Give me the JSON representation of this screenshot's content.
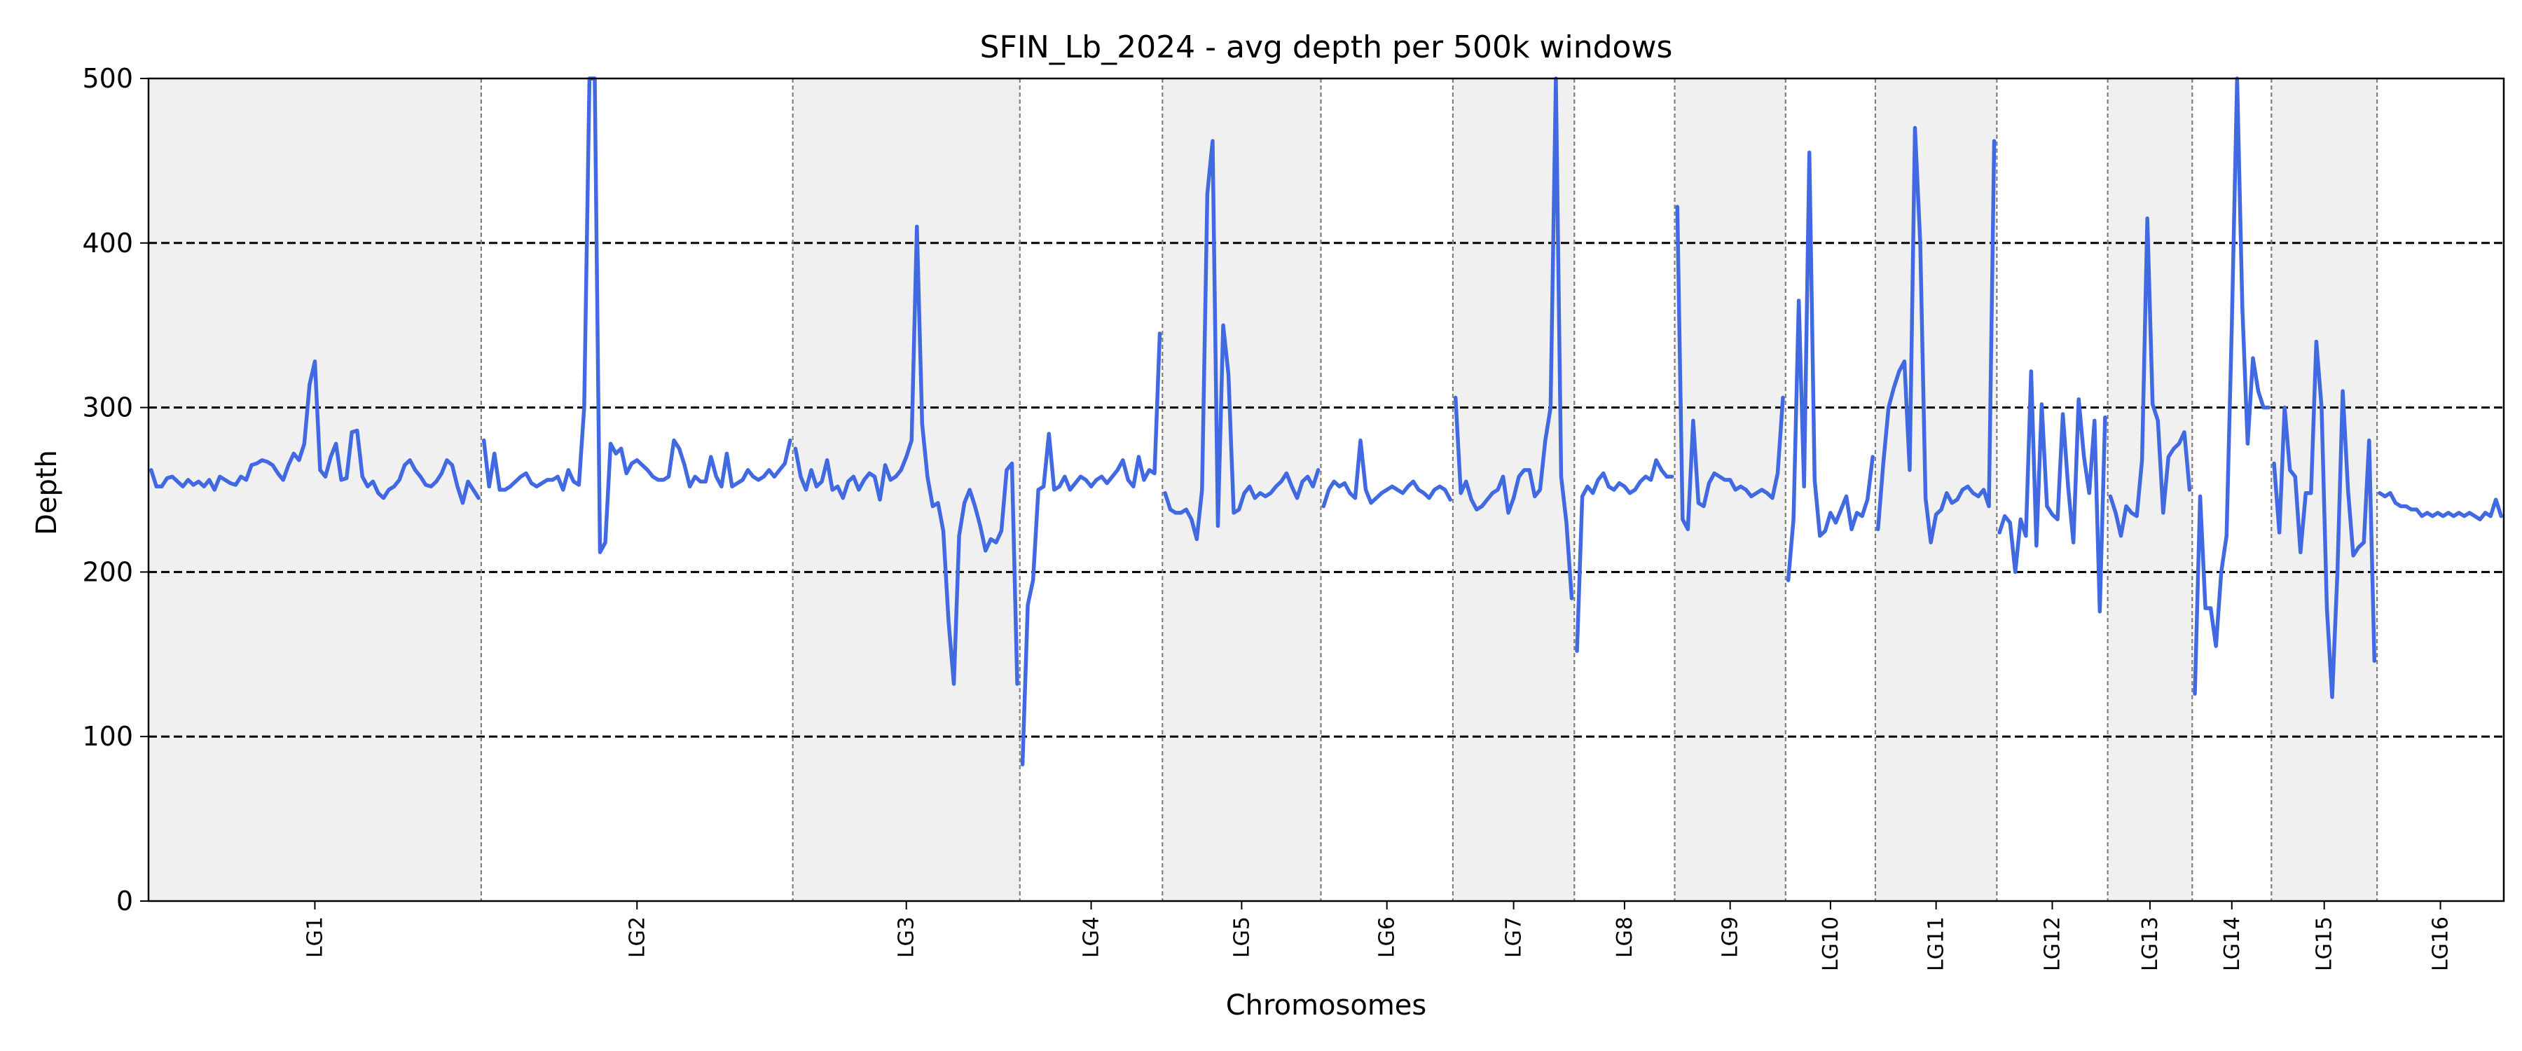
{
  "chart_data": {
    "type": "line",
    "title": "SFIN_Lb_2024 - avg depth per 500k windows",
    "xlabel": "Chromosomes",
    "ylabel": "Depth",
    "ylim": [
      0,
      500
    ],
    "yticks": [
      0,
      100,
      200,
      300,
      400,
      500
    ],
    "hlines": [
      100,
      200,
      300,
      400
    ],
    "grid": "horizontal dashed lines at 100, 200, 300, 400",
    "colors": {
      "line": "#4169e1",
      "band": "#f0f0f0",
      "boundary": "#808080",
      "hline": "#000000"
    },
    "chromosomes": [
      {
        "name": "LG1",
        "shaded": true,
        "values": [
          262,
          252,
          252,
          257,
          258,
          255,
          252,
          256,
          253,
          255,
          252,
          256,
          250,
          258,
          256,
          254,
          253,
          258,
          256,
          265,
          266,
          268,
          267,
          265,
          260,
          256,
          265,
          272,
          268,
          278,
          314,
          328,
          262,
          258,
          270,
          278,
          256,
          257,
          285,
          286,
          258,
          252,
          255,
          248,
          245,
          250,
          252,
          256,
          265,
          268,
          262,
          258,
          253,
          252,
          255,
          260,
          268,
          265,
          252,
          242,
          255,
          250,
          245
        ]
      },
      {
        "name": "LG2",
        "shaded": false,
        "values": [
          280,
          252,
          272,
          250,
          250,
          252,
          255,
          258,
          260,
          254,
          252,
          254,
          256,
          256,
          258,
          250,
          262,
          255,
          253,
          300,
          500,
          500,
          212,
          218,
          278,
          272,
          275,
          260,
          266,
          268,
          265,
          262,
          258,
          256,
          256,
          258,
          280,
          275,
          265,
          252,
          258,
          255,
          255,
          270,
          258,
          252,
          272,
          252,
          254,
          256,
          262,
          258,
          256,
          258,
          262,
          258,
          262,
          266,
          280
        ]
      },
      {
        "name": "LG3",
        "shaded": true,
        "values": [
          275,
          258,
          250,
          262,
          252,
          255,
          268,
          250,
          252,
          245,
          255,
          258,
          250,
          256,
          260,
          258,
          244,
          265,
          256,
          258,
          262,
          270,
          280,
          410,
          290,
          258,
          240,
          242,
          225,
          170,
          132,
          222,
          242,
          250,
          240,
          228,
          213,
          220,
          218,
          225,
          262,
          266,
          132
        ]
      },
      {
        "name": "LG4",
        "shaded": false,
        "values": [
          83,
          180,
          195,
          250,
          252,
          284,
          250,
          252,
          258,
          250,
          254,
          258,
          256,
          252,
          256,
          258,
          254,
          258,
          262,
          268,
          256,
          252,
          270,
          256,
          262,
          260,
          345
        ]
      },
      {
        "name": "LG5",
        "shaded": true,
        "values": [
          248,
          238,
          236,
          236,
          238,
          232,
          220,
          250,
          430,
          462,
          228,
          350,
          320,
          236,
          238,
          248,
          252,
          245,
          248,
          246,
          248,
          252,
          255,
          260,
          252,
          245,
          255,
          258,
          252,
          262
        ]
      },
      {
        "name": "LG6",
        "shaded": false,
        "values": [
          240,
          250,
          255,
          252,
          254,
          248,
          245,
          280,
          250,
          242,
          245,
          248,
          250,
          252,
          250,
          248,
          252,
          255,
          250,
          248,
          245,
          250,
          252,
          250,
          244
        ]
      },
      {
        "name": "LG7",
        "shaded": true,
        "values": [
          306,
          248,
          255,
          244,
          238,
          240,
          244,
          248,
          250,
          258,
          236,
          245,
          258,
          262,
          262,
          246,
          250,
          280,
          300,
          500,
          258,
          230,
          184
        ]
      },
      {
        "name": "LG8",
        "shaded": false,
        "values": [
          152,
          246,
          252,
          248,
          256,
          260,
          252,
          250,
          254,
          252,
          248,
          250,
          255,
          258,
          256,
          268,
          262,
          258,
          258
        ]
      },
      {
        "name": "LG9",
        "shaded": true,
        "values": [
          422,
          232,
          226,
          292,
          242,
          240,
          254,
          260,
          258,
          256,
          256,
          250,
          252,
          250,
          246,
          248,
          250,
          248,
          245,
          260,
          306
        ]
      },
      {
        "name": "LG10",
        "shaded": false,
        "values": [
          195,
          232,
          365,
          252,
          455,
          256,
          222,
          225,
          236,
          230,
          238,
          246,
          226,
          236,
          234,
          244,
          270
        ]
      },
      {
        "name": "LG11",
        "shaded": true,
        "values": [
          226,
          266,
          300,
          312,
          322,
          328,
          262,
          470,
          400,
          245,
          218,
          235,
          238,
          248,
          242,
          244,
          250,
          252,
          248,
          246,
          250,
          240,
          462
        ]
      },
      {
        "name": "LG12",
        "shaded": false,
        "values": [
          224,
          234,
          230,
          200,
          232,
          222,
          322,
          216,
          302,
          240,
          235,
          232,
          296,
          252,
          218,
          305,
          270,
          248,
          292,
          176,
          294
        ]
      },
      {
        "name": "LG13",
        "shaded": true,
        "values": [
          246,
          236,
          222,
          240,
          236,
          234,
          268,
          415,
          302,
          292,
          236,
          270,
          275,
          278,
          285,
          250
        ]
      },
      {
        "name": "LG14",
        "shaded": false,
        "values": [
          126,
          246,
          178,
          178,
          155,
          200,
          222,
          350,
          500,
          360,
          278,
          330,
          310,
          300,
          300
        ]
      },
      {
        "name": "LG15",
        "shaded": true,
        "values": [
          266,
          224,
          300,
          262,
          258,
          212,
          248,
          248,
          340,
          300,
          178,
          124,
          200,
          310,
          250,
          210,
          215,
          218,
          280,
          146
        ]
      },
      {
        "name": "LG16",
        "shaded": false,
        "values": [
          248,
          246,
          248,
          242,
          240,
          240,
          238,
          238,
          234,
          236,
          234,
          236,
          234,
          236,
          234,
          236,
          234,
          236,
          234,
          232,
          236,
          234,
          244,
          234
        ]
      }
    ]
  }
}
